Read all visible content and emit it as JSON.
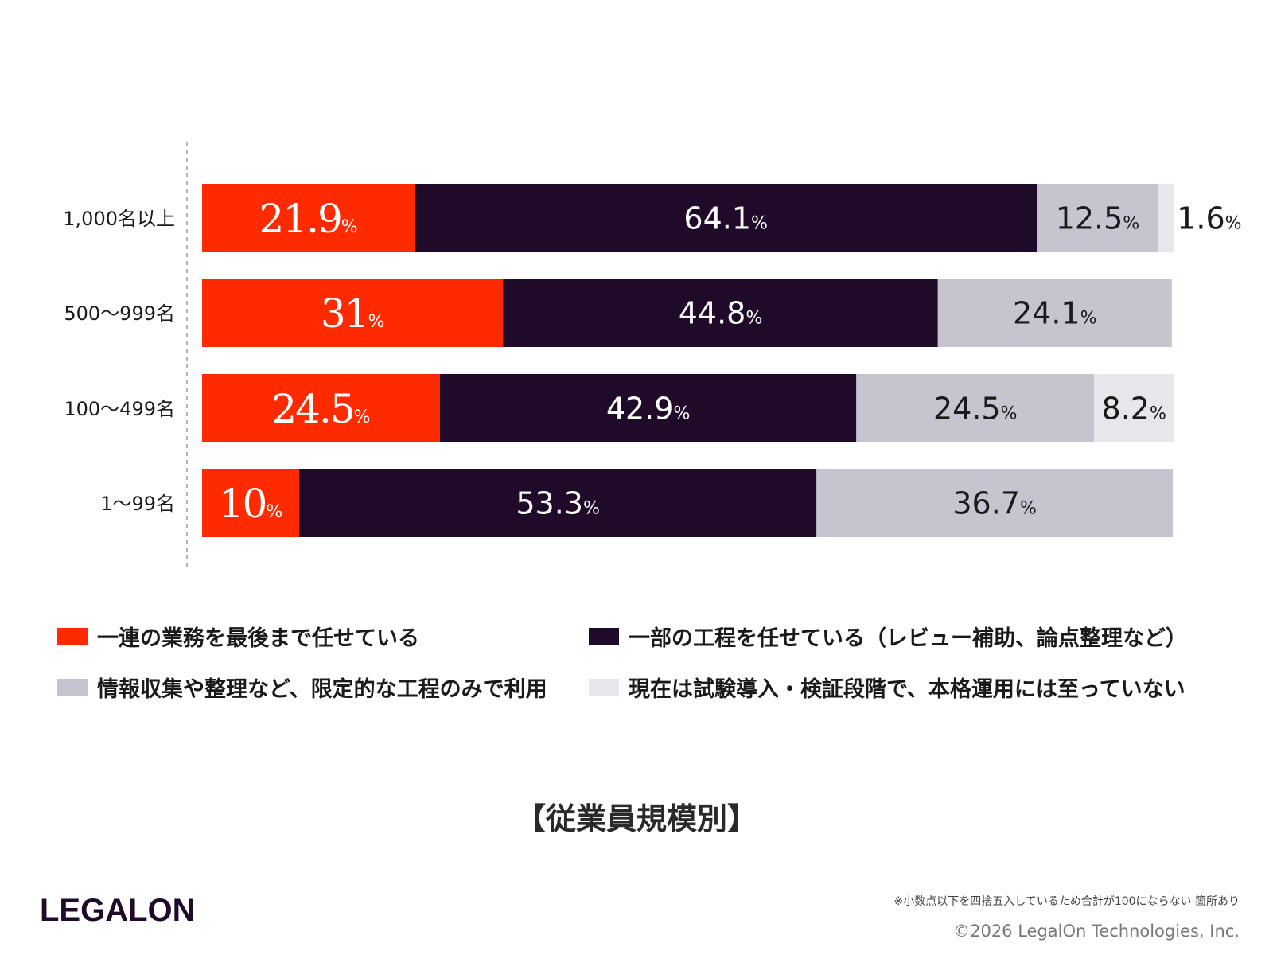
{
  "chart_data": {
    "type": "bar",
    "orientation": "horizontal",
    "stacked": true,
    "categories": [
      "1,000名以上",
      "500～999名",
      "100～499名",
      "1～99名"
    ],
    "series": [
      {
        "name": "一連の業務を最後まで任せている",
        "color": "#ff2a00",
        "values": [
          21.9,
          31,
          24.5,
          10
        ]
      },
      {
        "name": "一部の工程を任せている（レビュー補助、論点整理など）",
        "color": "#1f0a2a",
        "values": [
          64.1,
          44.8,
          42.9,
          53.3
        ]
      },
      {
        "name": "情報収集や整理など、限定的な工程のみで利用",
        "color": "#c4c5cf",
        "values": [
          12.5,
          24.1,
          24.5,
          36.7
        ]
      },
      {
        "name": "現在は試験導入・検証段階で、本格運用には至っていない",
        "color": "#e6e7eb",
        "values": [
          1.6,
          0,
          8.2,
          0
        ]
      }
    ],
    "value_suffix": "%",
    "xlim": [
      0,
      100
    ],
    "grid": false,
    "legend_position": "bottom"
  },
  "legend": [
    {
      "label": "一連の業務を最後まで任せている",
      "color": "#ff2a00"
    },
    {
      "label": "一部の工程を任せている（レビュー補助、論点整理など）",
      "color": "#1f0a2a"
    },
    {
      "label": "情報収集や整理など、限定的な工程のみで利用",
      "color": "#c4c5cf"
    },
    {
      "label": "現在は試験導入・検証段階で、本格運用には至っていない",
      "color": "#e6e7eb"
    }
  ],
  "caption": "【従業員規模別】",
  "logo": "LEGALON",
  "footnote": "※小数点以下を四捨五入しているため合計が100にならない 箇所あり",
  "copyright": "©2026 LegalOn Technologies, Inc."
}
